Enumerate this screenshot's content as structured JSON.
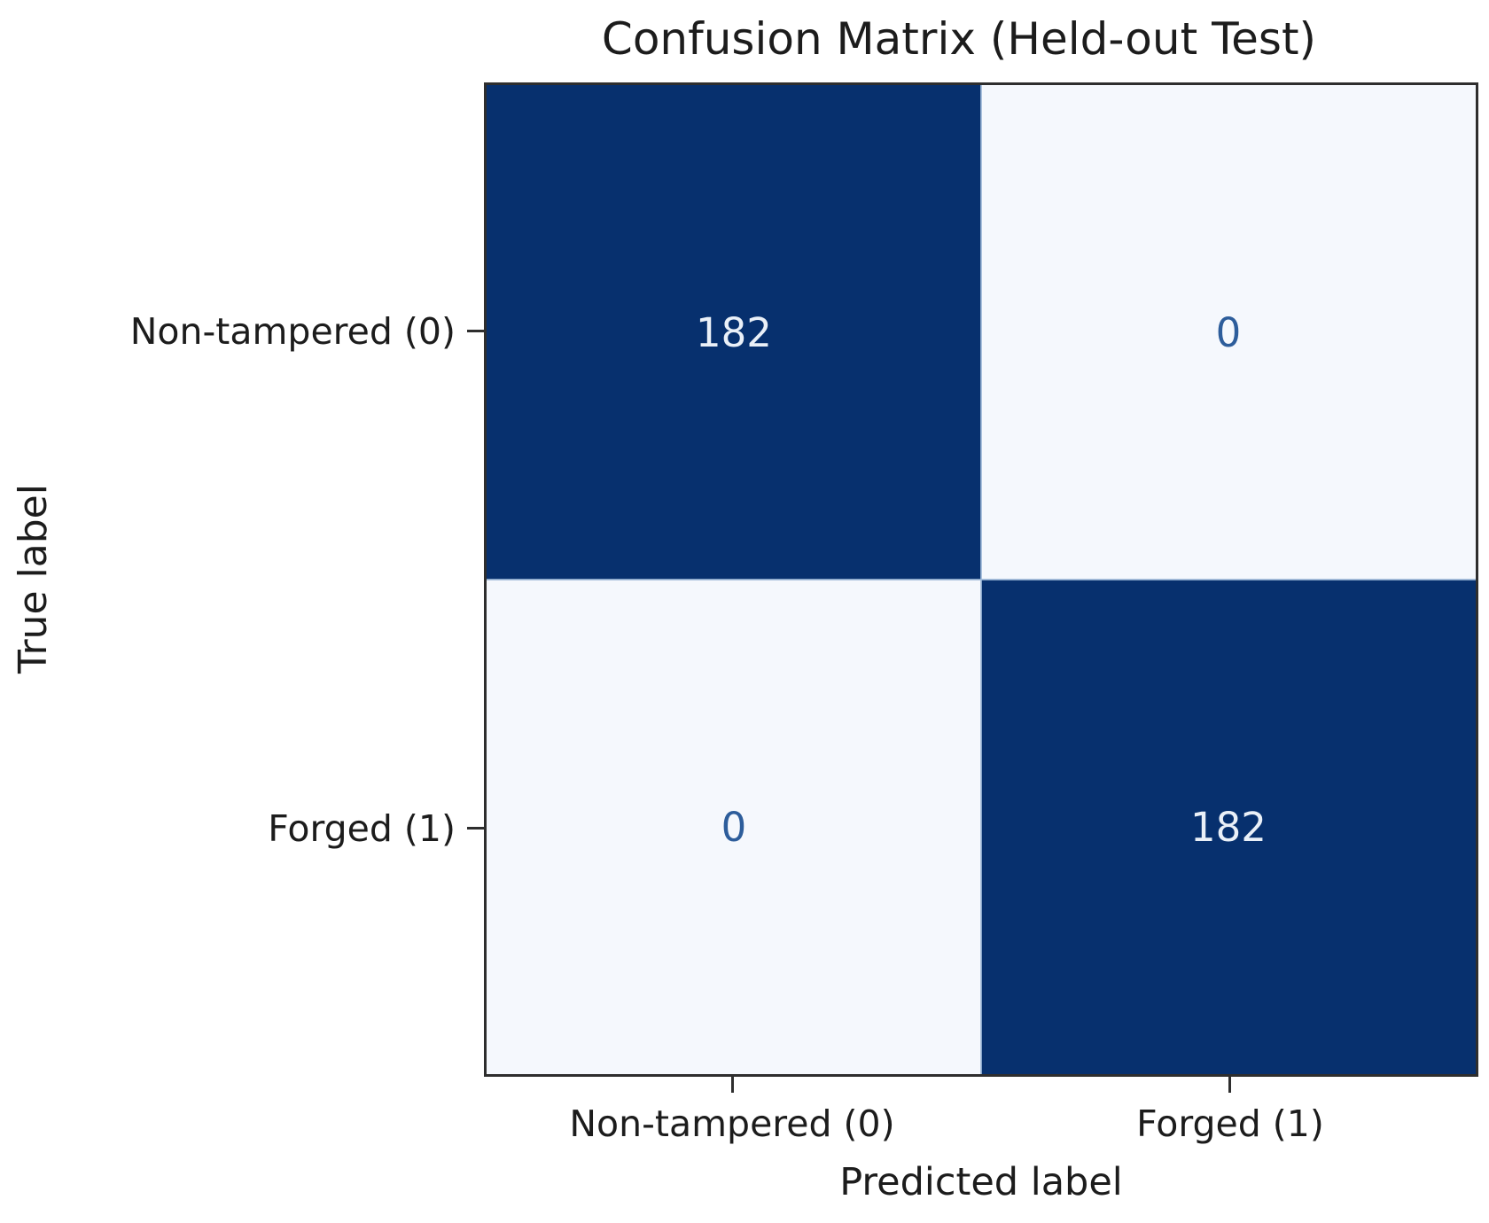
{
  "chart_data": {
    "type": "heatmap",
    "title": "Confusion Matrix (Held-out Test)",
    "xlabel": "Predicted label",
    "ylabel": "True label",
    "x_categories": [
      "Non-tampered (0)",
      "Forged (1)"
    ],
    "y_categories": [
      "Non-tampered (0)",
      "Forged (1)"
    ],
    "matrix": [
      [
        182,
        0
      ],
      [
        0,
        182
      ]
    ],
    "value_range": [
      0,
      182
    ],
    "colormap": "Blues",
    "legend_position": "none",
    "grid": false,
    "colors": {
      "cell_high": "#07306e",
      "cell_low": "#f5f8fd",
      "value_on_high": "#eaf0f8",
      "value_on_low": "#2d5d9b",
      "axis": "#2e2e2e",
      "text": "#1c1c1c",
      "background": "#ffffff"
    }
  }
}
